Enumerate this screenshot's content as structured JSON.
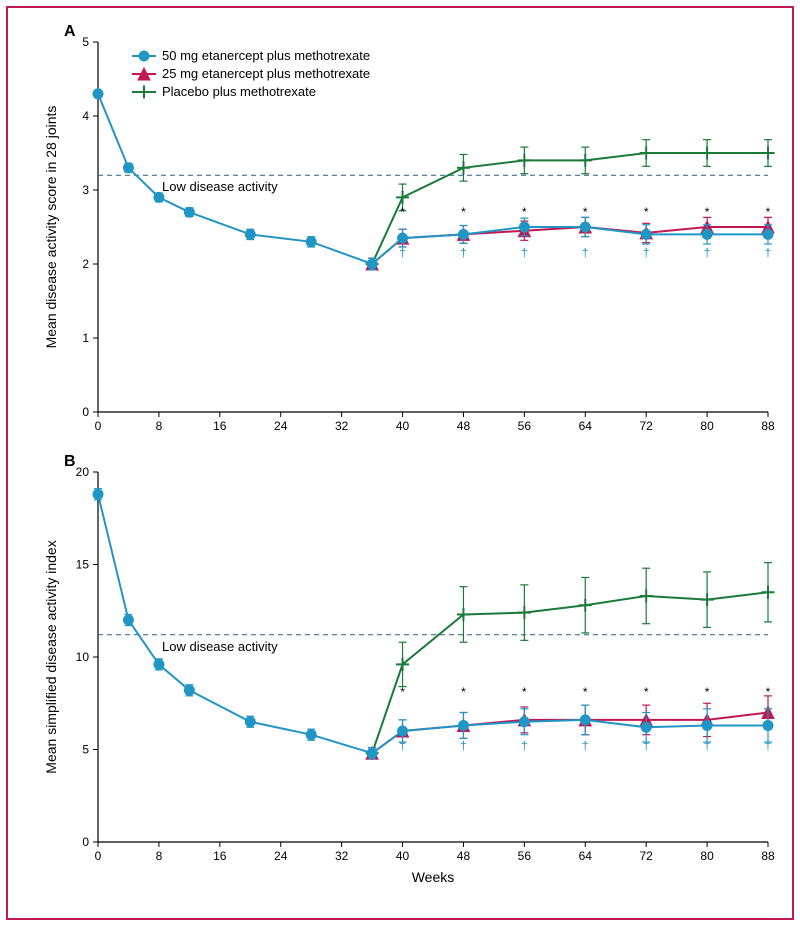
{
  "frame": {
    "border_color": "#c01850",
    "background": "#ffffff"
  },
  "legend": {
    "items": [
      {
        "label": "50 mg etanercept plus methotrexate",
        "color": "#2196c4",
        "marker": "circle"
      },
      {
        "label": "25 mg etanercept plus methotrexate",
        "color": "#c01850",
        "marker": "triangle"
      },
      {
        "label": "Placebo plus methotrexate",
        "color": "#1a7a3a",
        "marker": "plus"
      }
    ],
    "fontsize": 13
  },
  "common": {
    "xlabel": "Weeks",
    "xticks": [
      0,
      8,
      16,
      24,
      32,
      40,
      48,
      56,
      64,
      72,
      80,
      88
    ],
    "xlim": [
      0,
      88
    ],
    "axis_color": "#000000",
    "tick_fontsize": 12,
    "label_fontsize": 14,
    "panel_label_fontsize": 16,
    "ref_line_color": "#2a5a8a",
    "ref_line_dash": "5,4",
    "line_width": 2,
    "marker_size": 5,
    "error_cap": 4,
    "lda_label": "Low disease activity",
    "sig_star": "*",
    "sig_dagger": "†",
    "sig_fontsize": 12,
    "sig_star_color": "#000000",
    "sig_dagger_color": "#2196c4"
  },
  "panelA": {
    "label": "A",
    "ylabel": "Mean disease activity score in 28 joints",
    "ylim": [
      0,
      5
    ],
    "ytick_step": 1,
    "ref_y": 3.2,
    "series": {
      "etn50": {
        "color": "#2196c4",
        "marker": "circle",
        "x": [
          0,
          4,
          8,
          12,
          20,
          28,
          36,
          40,
          48,
          56,
          64,
          72,
          80,
          88
        ],
        "y": [
          4.3,
          3.3,
          2.9,
          2.7,
          2.4,
          2.3,
          2.0,
          2.35,
          2.4,
          2.5,
          2.5,
          2.4,
          2.4,
          2.4
        ],
        "err": [
          0.05,
          0.06,
          0.06,
          0.06,
          0.07,
          0.07,
          0.08,
          0.12,
          0.12,
          0.12,
          0.13,
          0.13,
          0.13,
          0.13
        ]
      },
      "etn25": {
        "color": "#c01850",
        "marker": "triangle",
        "x": [
          36,
          40,
          48,
          56,
          64,
          72,
          80,
          88
        ],
        "y": [
          2.0,
          2.35,
          2.4,
          2.45,
          2.5,
          2.42,
          2.5,
          2.5
        ],
        "err": [
          0.08,
          0.12,
          0.12,
          0.13,
          0.13,
          0.13,
          0.13,
          0.13
        ]
      },
      "placebo": {
        "color": "#1a7a3a",
        "marker": "plus",
        "x": [
          36,
          40,
          48,
          56,
          64,
          72,
          80,
          88
        ],
        "y": [
          2.0,
          2.9,
          3.3,
          3.4,
          3.4,
          3.5,
          3.5,
          3.5
        ],
        "err": [
          0.08,
          0.18,
          0.18,
          0.18,
          0.18,
          0.18,
          0.18,
          0.18
        ]
      }
    },
    "sig_x": [
      40,
      48,
      56,
      64,
      72,
      80,
      88
    ],
    "star_y": 2.65,
    "dagger_y": 2.1
  },
  "panelB": {
    "label": "B",
    "ylabel": "Mean simplified disease activity index",
    "ylim": [
      0,
      20
    ],
    "ytick_step": 5,
    "ref_y": 11.2,
    "series": {
      "etn50": {
        "color": "#2196c4",
        "marker": "circle",
        "x": [
          0,
          4,
          8,
          12,
          20,
          28,
          36,
          40,
          48,
          56,
          64,
          72,
          80,
          88
        ],
        "y": [
          18.8,
          12.0,
          9.6,
          8.2,
          6.5,
          5.8,
          4.8,
          6.0,
          6.3,
          6.5,
          6.6,
          6.2,
          6.3,
          6.3
        ],
        "err": [
          0.3,
          0.3,
          0.3,
          0.3,
          0.3,
          0.3,
          0.3,
          0.6,
          0.7,
          0.7,
          0.8,
          0.8,
          0.9,
          0.9
        ]
      },
      "etn25": {
        "color": "#c01850",
        "marker": "triangle",
        "x": [
          36,
          40,
          48,
          56,
          64,
          72,
          80,
          88
        ],
        "y": [
          4.8,
          6.0,
          6.3,
          6.6,
          6.6,
          6.6,
          6.6,
          7.0
        ],
        "err": [
          0.3,
          0.6,
          0.7,
          0.7,
          0.8,
          0.8,
          0.9,
          0.9
        ]
      },
      "placebo": {
        "color": "#1a7a3a",
        "marker": "plus",
        "x": [
          36,
          40,
          48,
          56,
          64,
          72,
          80,
          88
        ],
        "y": [
          4.8,
          9.6,
          12.3,
          12.4,
          12.8,
          13.3,
          13.1,
          13.5
        ],
        "err": [
          0.3,
          1.2,
          1.5,
          1.5,
          1.5,
          1.5,
          1.5,
          1.6
        ]
      }
    },
    "sig_x": [
      40,
      48,
      56,
      64,
      72,
      80,
      88
    ],
    "star_y": 7.9,
    "dagger_y": 5.0
  }
}
